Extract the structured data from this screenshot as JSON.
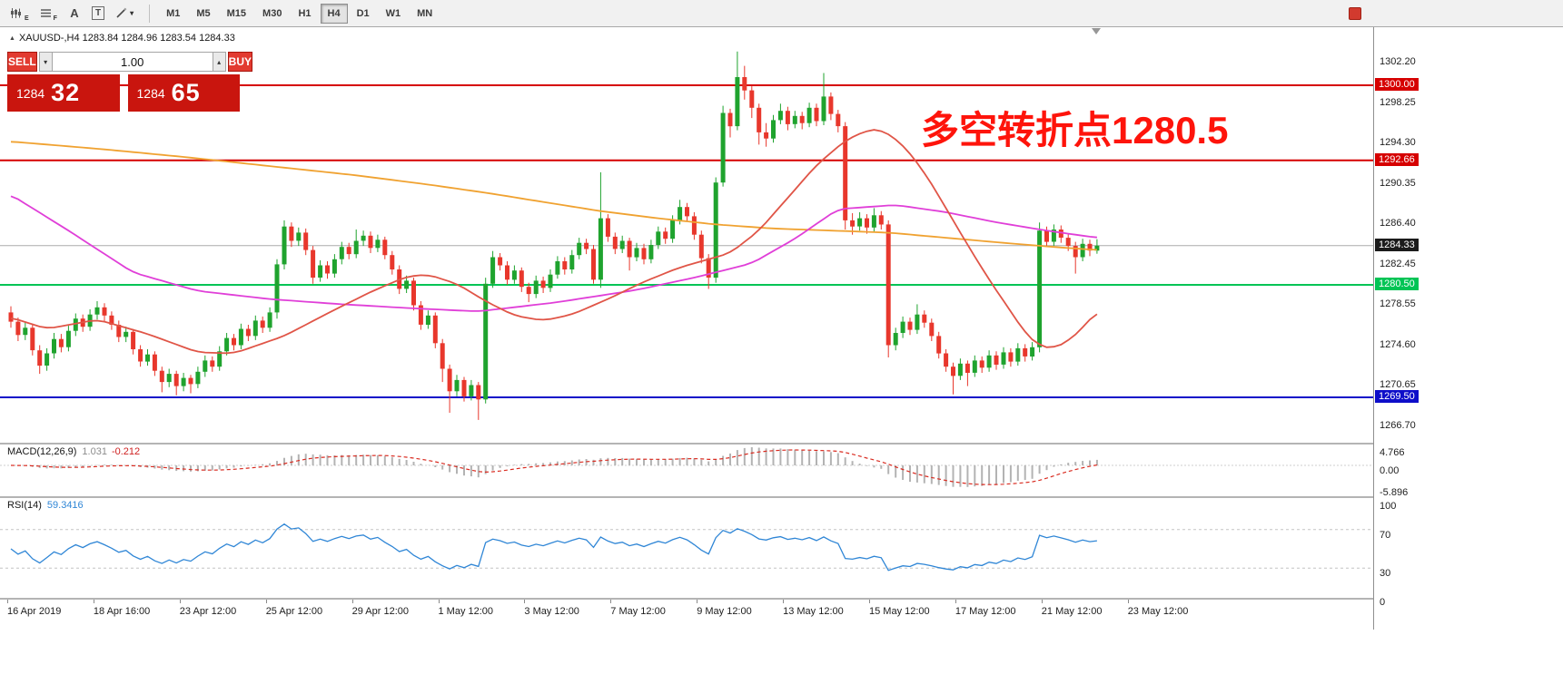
{
  "toolbar": {
    "icon_labels": {
      "expert": "E",
      "profile": "F",
      "text": "A",
      "textbox": "T"
    },
    "timeframes": [
      "M1",
      "M5",
      "M15",
      "M30",
      "H1",
      "H4",
      "D1",
      "W1",
      "MN"
    ],
    "active_timeframe": "H4"
  },
  "trade_panel": {
    "sell_label": "SELL",
    "buy_label": "BUY",
    "volume": "1.00",
    "bid": {
      "big": "1284",
      "pips": "32"
    },
    "ask": {
      "big": "1284",
      "pips": "65"
    }
  },
  "chart": {
    "symbol_header": "XAUUSD-,H4  1283.84 1284.96 1283.54 1284.33",
    "annotation": "多空转折点1280.5",
    "annotation_color": "#fe140b",
    "current_price": 1284.33,
    "current_price_label": "1284.33",
    "hlines": [
      {
        "price": 1300.0,
        "label": "1300.00",
        "color": "#d60000"
      },
      {
        "price": 1292.66,
        "label": "1292.66",
        "color": "#d60000"
      },
      {
        "price": 1280.5,
        "label": "1280.50",
        "color": "#00c455"
      },
      {
        "price": 1269.5,
        "label": "1269.50",
        "color": "#0e0ec9"
      }
    ],
    "y_axis_labels": [
      "1302.20",
      "1298.25",
      "1294.30",
      "1290.35",
      "1286.40",
      "1282.45",
      "1278.55",
      "1274.60",
      "1270.65",
      "1266.70"
    ],
    "x_axis_labels": [
      "16 Apr 2019",
      "18 Apr 16:00",
      "23 Apr 12:00",
      "25 Apr 12:00",
      "29 Apr 12:00",
      "1 May 12:00",
      "3 May 12:00",
      "7 May 12:00",
      "9 May 12:00",
      "13 May 12:00",
      "15 May 12:00",
      "17 May 12:00",
      "21 May 12:00",
      "23 May 12:00"
    ]
  },
  "chart_data": {
    "type": "candlestick",
    "symbol": "XAUUSD-",
    "timeframe": "H4",
    "up_color": "#1fa32e",
    "down_color": "#e8372c",
    "candles": [
      [
        1277.8,
        1278.4,
        1276.3,
        1276.9
      ],
      [
        1276.9,
        1277.3,
        1275.0,
        1275.6
      ],
      [
        1275.6,
        1276.9,
        1275.1,
        1276.3
      ],
      [
        1276.3,
        1276.7,
        1273.6,
        1274.1
      ],
      [
        1274.1,
        1274.6,
        1271.8,
        1272.6
      ],
      [
        1272.6,
        1274.3,
        1272.1,
        1273.8
      ],
      [
        1273.8,
        1275.8,
        1273.3,
        1275.2
      ],
      [
        1275.2,
        1275.7,
        1273.9,
        1274.4
      ],
      [
        1274.4,
        1276.5,
        1274.0,
        1276.0
      ],
      [
        1276.0,
        1277.7,
        1275.5,
        1277.2
      ],
      [
        1277.2,
        1277.6,
        1275.9,
        1276.4
      ],
      [
        1276.4,
        1278.1,
        1276.0,
        1277.6
      ],
      [
        1277.6,
        1278.9,
        1277.1,
        1278.3
      ],
      [
        1278.3,
        1278.7,
        1276.9,
        1277.5
      ],
      [
        1277.5,
        1277.9,
        1276.1,
        1276.6
      ],
      [
        1276.6,
        1277.0,
        1274.9,
        1275.4
      ],
      [
        1275.4,
        1276.4,
        1274.9,
        1275.9
      ],
      [
        1275.9,
        1276.2,
        1273.7,
        1274.2
      ],
      [
        1274.2,
        1274.6,
        1272.5,
        1273.0
      ],
      [
        1273.0,
        1274.2,
        1272.6,
        1273.7
      ],
      [
        1273.7,
        1274.0,
        1271.6,
        1272.1
      ],
      [
        1272.1,
        1272.5,
        1270.0,
        1271.0
      ],
      [
        1271.0,
        1272.3,
        1270.5,
        1271.8
      ],
      [
        1271.8,
        1272.1,
        1269.7,
        1270.6
      ],
      [
        1270.6,
        1271.9,
        1270.1,
        1271.4
      ],
      [
        1271.4,
        1271.7,
        1269.9,
        1270.8
      ],
      [
        1270.8,
        1272.5,
        1270.4,
        1272.0
      ],
      [
        1272.0,
        1273.6,
        1271.5,
        1273.1
      ],
      [
        1273.1,
        1273.5,
        1272.0,
        1272.5
      ],
      [
        1272.5,
        1274.5,
        1272.1,
        1274.0
      ],
      [
        1274.0,
        1275.8,
        1273.6,
        1275.3
      ],
      [
        1275.3,
        1275.7,
        1274.1,
        1274.6
      ],
      [
        1274.6,
        1276.7,
        1274.2,
        1276.2
      ],
      [
        1276.2,
        1276.6,
        1275.0,
        1275.5
      ],
      [
        1275.5,
        1277.5,
        1275.1,
        1277.0
      ],
      [
        1277.0,
        1277.4,
        1275.8,
        1276.3
      ],
      [
        1276.3,
        1278.3,
        1275.9,
        1277.8
      ],
      [
        1277.8,
        1283.0,
        1277.2,
        1282.5
      ],
      [
        1282.5,
        1286.8,
        1282.0,
        1286.2
      ],
      [
        1286.2,
        1286.6,
        1284.2,
        1284.8
      ],
      [
        1284.8,
        1286.1,
        1284.3,
        1285.6
      ],
      [
        1285.6,
        1286.0,
        1283.4,
        1283.9
      ],
      [
        1283.9,
        1284.3,
        1280.6,
        1281.2
      ],
      [
        1281.2,
        1282.9,
        1280.8,
        1282.4
      ],
      [
        1282.4,
        1282.8,
        1281.1,
        1281.6
      ],
      [
        1281.6,
        1283.5,
        1281.2,
        1283.0
      ],
      [
        1283.0,
        1284.7,
        1282.5,
        1284.2
      ],
      [
        1284.2,
        1284.6,
        1283.0,
        1283.5
      ],
      [
        1283.5,
        1285.9,
        1283.1,
        1284.8
      ],
      [
        1284.8,
        1285.8,
        1284.3,
        1285.3
      ],
      [
        1285.3,
        1285.7,
        1283.6,
        1284.1
      ],
      [
        1284.1,
        1285.4,
        1283.7,
        1284.9
      ],
      [
        1284.9,
        1285.2,
        1283.0,
        1283.4
      ],
      [
        1283.4,
        1283.8,
        1281.5,
        1282.0
      ],
      [
        1282.0,
        1282.4,
        1279.6,
        1280.1
      ],
      [
        1280.1,
        1281.4,
        1279.7,
        1280.9
      ],
      [
        1280.9,
        1281.2,
        1278.0,
        1278.5
      ],
      [
        1278.5,
        1278.9,
        1276.1,
        1276.6
      ],
      [
        1276.6,
        1278.0,
        1276.2,
        1277.5
      ],
      [
        1277.5,
        1277.8,
        1274.3,
        1274.8
      ],
      [
        1274.8,
        1275.2,
        1271.0,
        1272.3
      ],
      [
        1272.3,
        1272.7,
        1268.0,
        1270.1
      ],
      [
        1270.1,
        1271.7,
        1269.6,
        1271.2
      ],
      [
        1271.2,
        1271.5,
        1269.1,
        1269.6
      ],
      [
        1269.6,
        1271.2,
        1269.2,
        1270.7
      ],
      [
        1270.7,
        1271.0,
        1267.3,
        1269.3
      ],
      [
        1269.3,
        1281.2,
        1268.9,
        1280.6
      ],
      [
        1280.6,
        1283.8,
        1280.2,
        1283.2
      ],
      [
        1283.2,
        1283.6,
        1281.9,
        1282.4
      ],
      [
        1282.4,
        1282.8,
        1280.5,
        1281.0
      ],
      [
        1281.0,
        1282.4,
        1280.6,
        1281.9
      ],
      [
        1281.9,
        1282.2,
        1279.8,
        1280.3
      ],
      [
        1280.3,
        1280.7,
        1278.8,
        1279.6
      ],
      [
        1279.6,
        1281.4,
        1279.2,
        1280.9
      ],
      [
        1280.9,
        1281.3,
        1279.7,
        1280.2
      ],
      [
        1280.2,
        1282.0,
        1279.8,
        1281.5
      ],
      [
        1281.5,
        1283.3,
        1281.1,
        1282.8
      ],
      [
        1282.8,
        1283.2,
        1281.5,
        1282.0
      ],
      [
        1282.0,
        1283.9,
        1281.6,
        1283.4
      ],
      [
        1283.4,
        1285.1,
        1283.0,
        1284.6
      ],
      [
        1284.6,
        1285.0,
        1283.5,
        1284.0
      ],
      [
        1284.0,
        1284.4,
        1280.6,
        1281.0
      ],
      [
        1281.0,
        1291.5,
        1280.2,
        1287.0
      ],
      [
        1287.0,
        1287.4,
        1284.7,
        1285.2
      ],
      [
        1285.2,
        1285.6,
        1283.5,
        1284.0
      ],
      [
        1284.0,
        1285.3,
        1283.6,
        1284.8
      ],
      [
        1284.8,
        1285.1,
        1281.9,
        1283.2
      ],
      [
        1283.2,
        1284.6,
        1282.8,
        1284.1
      ],
      [
        1284.1,
        1284.5,
        1282.5,
        1283.0
      ],
      [
        1283.0,
        1284.9,
        1282.6,
        1284.4
      ],
      [
        1284.4,
        1286.2,
        1284.0,
        1285.7
      ],
      [
        1285.7,
        1286.1,
        1284.5,
        1285.0
      ],
      [
        1285.0,
        1287.3,
        1284.6,
        1286.8
      ],
      [
        1286.8,
        1288.8,
        1286.4,
        1288.1
      ],
      [
        1288.1,
        1288.5,
        1286.7,
        1287.2
      ],
      [
        1287.2,
        1287.6,
        1284.9,
        1285.4
      ],
      [
        1285.4,
        1285.8,
        1282.6,
        1283.1
      ],
      [
        1283.1,
        1283.5,
        1280.1,
        1281.2
      ],
      [
        1281.2,
        1291.0,
        1280.7,
        1290.5
      ],
      [
        1290.5,
        1298.0,
        1290.1,
        1297.3
      ],
      [
        1297.3,
        1297.7,
        1294.9,
        1296.0
      ],
      [
        1296.0,
        1303.3,
        1295.6,
        1300.8
      ],
      [
        1300.8,
        1301.9,
        1298.6,
        1299.5
      ],
      [
        1299.5,
        1299.9,
        1296.8,
        1297.8
      ],
      [
        1297.8,
        1298.2,
        1294.2,
        1295.4
      ],
      [
        1295.4,
        1296.3,
        1294.0,
        1294.8
      ],
      [
        1294.8,
        1297.1,
        1294.4,
        1296.6
      ],
      [
        1296.6,
        1298.2,
        1296.2,
        1297.5
      ],
      [
        1297.5,
        1297.9,
        1295.6,
        1296.2
      ],
      [
        1296.2,
        1297.5,
        1295.8,
        1297.0
      ],
      [
        1297.0,
        1297.4,
        1295.7,
        1296.3
      ],
      [
        1296.3,
        1298.3,
        1295.9,
        1297.8
      ],
      [
        1297.8,
        1298.2,
        1296.0,
        1296.5
      ],
      [
        1296.5,
        1301.2,
        1296.1,
        1298.9
      ],
      [
        1298.9,
        1299.3,
        1296.6,
        1297.2
      ],
      [
        1297.2,
        1297.6,
        1295.4,
        1296.0
      ],
      [
        1296.0,
        1296.4,
        1285.9,
        1286.8
      ],
      [
        1286.8,
        1287.5,
        1285.4,
        1286.2
      ],
      [
        1286.2,
        1287.6,
        1285.8,
        1287.0
      ],
      [
        1287.0,
        1287.4,
        1285.5,
        1286.1
      ],
      [
        1286.1,
        1288.0,
        1285.7,
        1287.3
      ],
      [
        1287.3,
        1287.7,
        1285.9,
        1286.4
      ],
      [
        1286.4,
        1286.8,
        1273.4,
        1274.6
      ],
      [
        1274.6,
        1276.3,
        1274.1,
        1275.8
      ],
      [
        1275.8,
        1277.4,
        1275.3,
        1276.9
      ],
      [
        1276.9,
        1277.3,
        1275.6,
        1276.1
      ],
      [
        1276.1,
        1278.6,
        1275.7,
        1277.6
      ],
      [
        1277.6,
        1278.0,
        1276.3,
        1276.8
      ],
      [
        1276.8,
        1277.2,
        1275.0,
        1275.5
      ],
      [
        1275.5,
        1275.9,
        1273.3,
        1273.8
      ],
      [
        1273.8,
        1274.2,
        1272.0,
        1272.5
      ],
      [
        1272.5,
        1272.9,
        1269.8,
        1271.6
      ],
      [
        1271.6,
        1273.3,
        1271.2,
        1272.8
      ],
      [
        1272.8,
        1273.1,
        1270.6,
        1271.9
      ],
      [
        1271.9,
        1273.6,
        1271.5,
        1273.1
      ],
      [
        1273.1,
        1273.5,
        1271.9,
        1272.4
      ],
      [
        1272.4,
        1274.1,
        1272.0,
        1273.6
      ],
      [
        1273.6,
        1274.0,
        1272.2,
        1272.7
      ],
      [
        1272.7,
        1274.4,
        1272.3,
        1273.9
      ],
      [
        1273.9,
        1274.3,
        1272.5,
        1273.0
      ],
      [
        1273.0,
        1274.8,
        1272.6,
        1274.3
      ],
      [
        1274.3,
        1274.7,
        1273.0,
        1273.5
      ],
      [
        1273.5,
        1274.9,
        1273.1,
        1274.4
      ],
      [
        1274.4,
        1286.6,
        1273.9,
        1285.8
      ],
      [
        1285.8,
        1286.2,
        1284.2,
        1284.7
      ],
      [
        1284.7,
        1286.4,
        1284.3,
        1285.9
      ],
      [
        1285.9,
        1286.3,
        1284.6,
        1285.1
      ],
      [
        1285.1,
        1285.5,
        1283.8,
        1284.3
      ],
      [
        1284.3,
        1284.7,
        1281.6,
        1283.2
      ],
      [
        1283.2,
        1285.0,
        1282.8,
        1284.5
      ],
      [
        1284.5,
        1284.9,
        1283.3,
        1283.84
      ],
      [
        1283.84,
        1284.96,
        1283.54,
        1284.33
      ]
    ],
    "moving_averages": [
      {
        "name": "ma-slow-orange",
        "color": "#f0a231",
        "points": [
          [
            0,
            1294.5
          ],
          [
            12,
            1293.8
          ],
          [
            24,
            1293.0
          ],
          [
            36,
            1292.1
          ],
          [
            48,
            1291.2
          ],
          [
            58,
            1290.3
          ],
          [
            66,
            1289.5
          ],
          [
            74,
            1288.6
          ],
          [
            82,
            1287.7
          ],
          [
            90,
            1287.0
          ],
          [
            98,
            1286.4
          ],
          [
            106,
            1286.0
          ],
          [
            114,
            1285.8
          ],
          [
            122,
            1285.6
          ],
          [
            130,
            1285.1
          ],
          [
            138,
            1284.6
          ],
          [
            145,
            1284.2
          ],
          [
            151,
            1283.9
          ]
        ]
      },
      {
        "name": "ma-medium-magenta",
        "color": "#e03fd8",
        "points": [
          [
            0,
            1289.3
          ],
          [
            8,
            1285.8
          ],
          [
            17,
            1281.7
          ],
          [
            26,
            1279.9
          ],
          [
            36,
            1279.1
          ],
          [
            46,
            1278.6
          ],
          [
            56,
            1278.2
          ],
          [
            65,
            1277.9
          ],
          [
            76,
            1278.8
          ],
          [
            87,
            1280.0
          ],
          [
            95,
            1281.2
          ],
          [
            103,
            1282.6
          ],
          [
            109,
            1285.0
          ],
          [
            115,
            1287.9
          ],
          [
            123,
            1288.3
          ],
          [
            130,
            1287.6
          ],
          [
            137,
            1286.6
          ],
          [
            144,
            1285.8
          ],
          [
            151,
            1285.1
          ]
        ]
      },
      {
        "name": "ma-fast-red",
        "color": "#e05547",
        "points": [
          [
            0,
            1277.3
          ],
          [
            5,
            1276.2
          ],
          [
            12,
            1277.1
          ],
          [
            19,
            1275.7
          ],
          [
            26,
            1273.9
          ],
          [
            31,
            1273.8
          ],
          [
            38,
            1275.5
          ],
          [
            44,
            1277.7
          ],
          [
            50,
            1279.8
          ],
          [
            55,
            1281.3
          ],
          [
            58,
            1281.5
          ],
          [
            62,
            1280.6
          ],
          [
            66,
            1278.9
          ],
          [
            70,
            1277.5
          ],
          [
            74,
            1277.0
          ],
          [
            78,
            1277.6
          ],
          [
            83,
            1279.1
          ],
          [
            88,
            1280.8
          ],
          [
            93,
            1282.2
          ],
          [
            97,
            1283.0
          ],
          [
            100,
            1283.6
          ],
          [
            104,
            1285.8
          ],
          [
            108,
            1289.0
          ],
          [
            112,
            1292.2
          ],
          [
            116,
            1294.6
          ],
          [
            119,
            1295.6
          ],
          [
            121,
            1295.7
          ],
          [
            124,
            1294.2
          ],
          [
            127,
            1291.5
          ],
          [
            130,
            1288.0
          ],
          [
            133,
            1284.4
          ],
          [
            136,
            1281.0
          ],
          [
            139,
            1277.9
          ],
          [
            141,
            1275.8
          ],
          [
            143,
            1274.5
          ],
          [
            145,
            1274.3
          ],
          [
            147,
            1275.0
          ],
          [
            149,
            1276.3
          ],
          [
            151,
            1277.9
          ]
        ]
      }
    ]
  },
  "macd": {
    "label": "MACD(12,26,9)",
    "main_value": "1.031",
    "signal_value": "-0.212",
    "axis_labels": [
      "4.766",
      "0.00",
      "-5.896"
    ],
    "histogram_color": "#b3b3b3",
    "signal_color": "#d92b20"
  },
  "rsi": {
    "label": "RSI(14)",
    "value": "59.3416",
    "axis_labels": [
      "100",
      "70",
      "30",
      "0"
    ],
    "levels": [
      70,
      30
    ],
    "line_color": "#2f86d6"
  }
}
